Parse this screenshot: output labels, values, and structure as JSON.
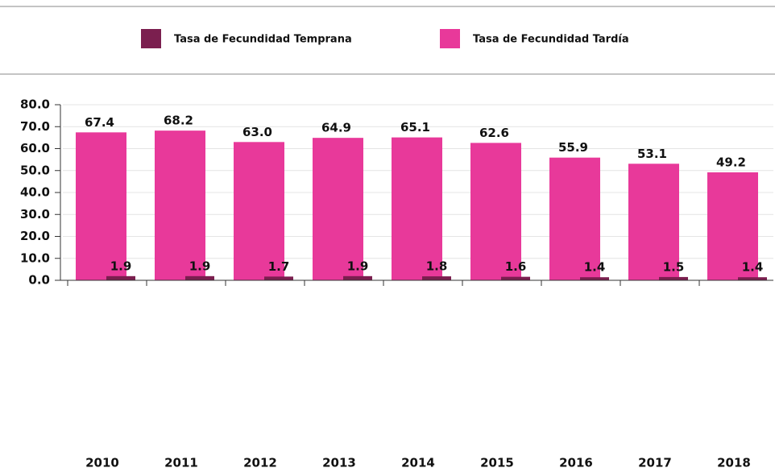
{
  "chart_data": {
    "type": "bar",
    "categories": [
      "2010",
      "2011",
      "2012",
      "2013",
      "2014",
      "2015",
      "2016",
      "2017",
      "2018"
    ],
    "series": [
      {
        "name": "Tasa de Fecundidad Temprana",
        "color": "#7b1f4f",
        "values": [
          1.9,
          1.9,
          1.7,
          1.9,
          1.8,
          1.6,
          1.4,
          1.5,
          1.4
        ],
        "value_labels": [
          "1.9",
          "1.9",
          "1.7",
          "1.9",
          "1.8",
          "1.6",
          "1.4",
          "1.5",
          "1.4"
        ]
      },
      {
        "name": "Tasa de Fecundidad Tardía",
        "color": "#e8399a",
        "values": [
          67.4,
          68.2,
          63.0,
          64.9,
          65.1,
          62.6,
          55.9,
          53.1,
          49.2
        ],
        "value_labels": [
          "67.4",
          "68.2",
          "63.0",
          "64.9",
          "65.1",
          "62.6",
          "55.9",
          "53.1",
          "49.2"
        ]
      }
    ],
    "ylim": [
      0,
      80
    ],
    "yticks": [
      {
        "value": 0,
        "label": "0.0"
      },
      {
        "value": 10,
        "label": "10.0"
      },
      {
        "value": 20,
        "label": "20.0"
      },
      {
        "value": 30,
        "label": "30.0"
      },
      {
        "value": 40,
        "label": "40.0"
      },
      {
        "value": 50,
        "label": "50.0"
      },
      {
        "value": 60,
        "label": "60.0"
      },
      {
        "value": 70,
        "label": "70.0"
      },
      {
        "value": 80,
        "label": "80.0"
      }
    ],
    "grid": true
  }
}
